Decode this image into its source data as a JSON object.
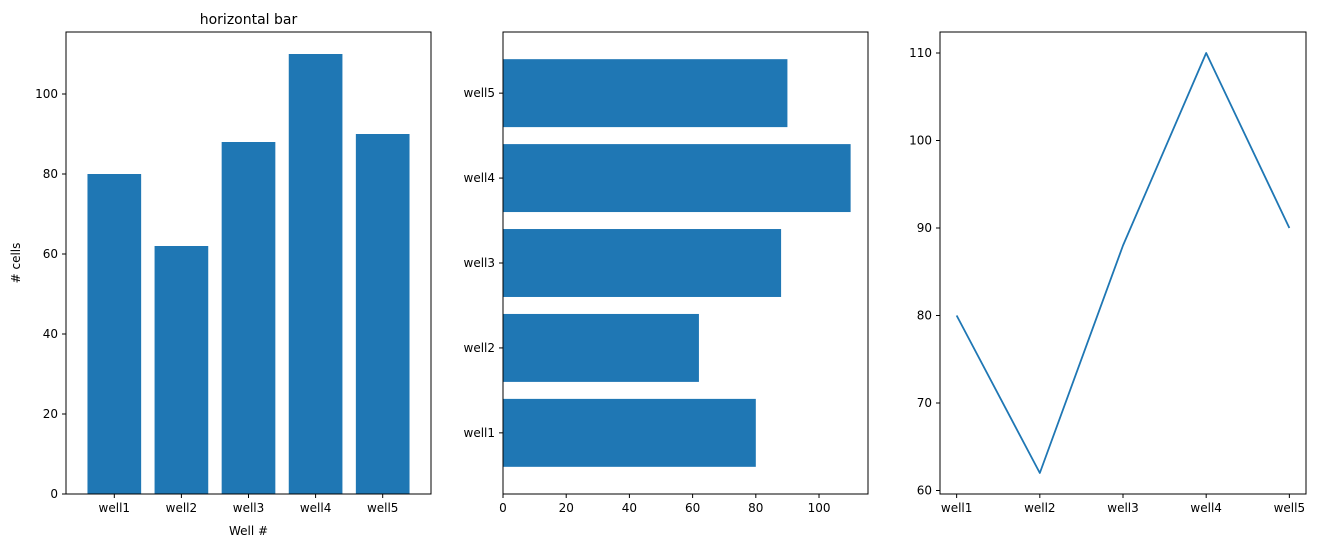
{
  "figure": {
    "background": "#ffffff",
    "bar_color": "#1f77b4",
    "line_color": "#1f77b4"
  },
  "chart_data": [
    {
      "type": "bar",
      "title": "horizontal bar",
      "xlabel": "Well #",
      "ylabel": "# cells",
      "categories": [
        "well1",
        "well2",
        "well3",
        "well4",
        "well5"
      ],
      "values": [
        80,
        62,
        88,
        110,
        90
      ],
      "ylim": [
        0,
        115.5
      ],
      "yticks": [
        0,
        20,
        40,
        60,
        80,
        100
      ],
      "grid": false
    },
    {
      "type": "bar",
      "orientation": "horizontal",
      "title": "",
      "xlabel": "",
      "ylabel": "",
      "categories": [
        "well1",
        "well2",
        "well3",
        "well4",
        "well5"
      ],
      "values": [
        80,
        62,
        88,
        110,
        90
      ],
      "xlim": [
        0,
        115.5
      ],
      "xticks": [
        0,
        20,
        40,
        60,
        80,
        100
      ],
      "grid": false
    },
    {
      "type": "line",
      "title": "",
      "xlabel": "",
      "ylabel": "",
      "x": [
        "well1",
        "well2",
        "well3",
        "well4",
        "well5"
      ],
      "y": [
        80,
        62,
        88,
        110,
        90
      ],
      "ylim": [
        59.6,
        112.4
      ],
      "yticks": [
        60,
        70,
        80,
        90,
        100,
        110
      ],
      "grid": false
    }
  ]
}
